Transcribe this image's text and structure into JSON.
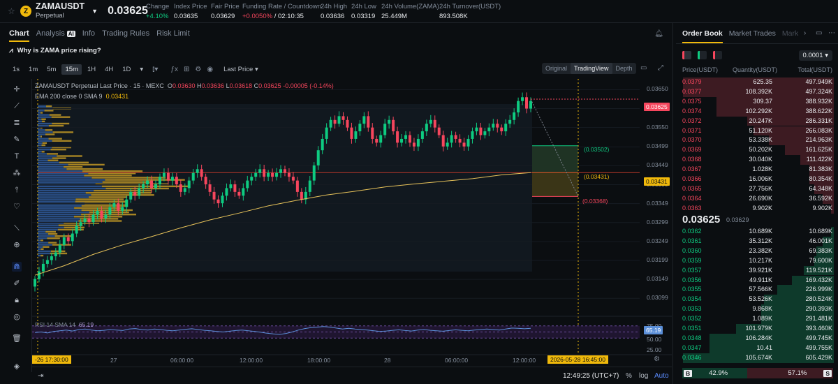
{
  "ticker": {
    "symbol": "ZAMAUSDT",
    "contract": "Perpetual",
    "coin_letter": "Z",
    "last_price": "0.03625",
    "change_label": "Change",
    "change_value": "+4.10%",
    "index_label": "Index Price",
    "index_value": "0.03635",
    "fair_label": "Fair Price",
    "fair_value": "0.03629",
    "funding_label": "Funding Rate / Countdown",
    "funding_rate": "+0.0050%",
    "funding_sep": "/",
    "countdown": "02:10:35",
    "high_label": "24h High",
    "high_value": "0.03636",
    "low_label": "24h Low",
    "low_value": "0.03319",
    "vol_label": "24h Volume(ZAMA)",
    "vol_value": "25.449M",
    "turnover_label": "24h Turnover(USDT)",
    "turnover_value": "893.508K"
  },
  "chart_tabs": [
    "Chart",
    "Analysis",
    "Info",
    "Trading Rules",
    "Risk Limit"
  ],
  "ai_badge": "AI",
  "prompt": "Why is ZAMA price rising?",
  "timeframes": [
    "1s",
    "1m",
    "5m",
    "15m",
    "1H",
    "4H",
    "1D"
  ],
  "active_timeframe": "15m",
  "price_source": "Last Price",
  "views": [
    "Original",
    "TradingView",
    "Depth"
  ],
  "active_view": "TradingView",
  "legend": {
    "title": "ZAMAUSDT Perpetual Last Price · 15 · MEXC",
    "o_lbl": "O",
    "o": "0.03630",
    "h_lbl": "H",
    "h": "0.03636",
    "l_lbl": "L",
    "l": "0.03618",
    "c_lbl": "C",
    "c": "0.03625",
    "chg": "-0.00005 (-0.14%)",
    "ema": "EMA 200 close 0 SMA 9",
    "ema_val": "0.03431",
    "rsi": "RSI 14 SMA 14",
    "rsi_val": "65.19"
  },
  "chart_data": {
    "type": "candlestick",
    "title": "ZAMAUSDT Perpetual Last Price · 15 · MEXC",
    "y_ticks": [
      "0.03650",
      "0.03600",
      "0.03550",
      "0.03499",
      "0.03449",
      "0.03399",
      "0.03349",
      "0.03299",
      "0.03249",
      "0.03199",
      "0.03149",
      "0.03099"
    ],
    "ylim": [
      0.0307,
      0.0366
    ],
    "x_ticks": [
      "27",
      "06:00:00",
      "12:00:00",
      "18:00:00",
      "28",
      "06:00:00",
      "12:00:00"
    ],
    "close_series": [
      0.0315,
      0.0317,
      0.0319,
      0.032,
      0.0321,
      0.0322,
      0.0324,
      0.0326,
      0.0325,
      0.0327,
      0.0329,
      0.033,
      0.0331,
      0.033,
      0.0332,
      0.0333,
      0.0331,
      0.0332,
      0.0334,
      0.0335,
      0.0333,
      0.0334,
      0.0336,
      0.0338,
      0.0337,
      0.0339,
      0.034,
      0.0341,
      0.0339,
      0.034,
      0.0342,
      0.0343,
      0.0341,
      0.0342,
      0.034,
      0.0338,
      0.0339,
      0.0341,
      0.0343,
      0.0344,
      0.0342,
      0.034,
      0.0338,
      0.0336,
      0.0335,
      0.0337,
      0.0339,
      0.034,
      0.0338,
      0.0337,
      0.0339,
      0.0341,
      0.0342,
      0.0343,
      0.0344,
      0.0342,
      0.0343,
      0.0342,
      0.0343,
      0.0344,
      0.0343,
      0.0342,
      0.0341,
      0.0338,
      0.0336,
      0.0338,
      0.0341,
      0.0345,
      0.0349,
      0.0352,
      0.0355,
      0.0357,
      0.0356,
      0.0358,
      0.0357,
      0.0355,
      0.0352,
      0.0354,
      0.0356,
      0.0358,
      0.0355,
      0.0352,
      0.0351,
      0.0353,
      0.0356,
      0.0357,
      0.0354,
      0.0351,
      0.0352,
      0.0353,
      0.0351,
      0.035,
      0.0352,
      0.0354,
      0.0356,
      0.0357,
      0.0355,
      0.0353,
      0.035,
      0.0351,
      0.0353,
      0.0352,
      0.0351,
      0.035,
      0.0352,
      0.0354,
      0.0355,
      0.0353,
      0.0354,
      0.0355,
      0.0356,
      0.0355,
      0.0354,
      0.0356,
      0.0357,
      0.0359,
      0.0362,
      0.0363,
      0.036,
      0.0362
    ],
    "ema_close": [
      0.0316,
      0.03185,
      0.03215,
      0.0324,
      0.03262,
      0.03285,
      0.03306,
      0.03324,
      0.03343,
      0.03358,
      0.03372,
      0.03382,
      0.03393,
      0.03401,
      0.03408,
      0.03415,
      0.03425,
      0.03431
    ],
    "price_tags": {
      "last": "0.03625",
      "ema": "0.03431"
    },
    "risk_reward": {
      "target": "(0.03502)",
      "entry": "(0.03431)",
      "stop": "(0.03368)"
    },
    "rsi_ticks": [
      "75.00",
      "50.00",
      "25.00"
    ],
    "rsi_value": "65.19",
    "rsi_series": [
      48,
      50,
      46,
      52,
      55,
      58,
      54,
      60,
      62,
      58,
      55,
      57,
      60,
      58,
      56,
      62,
      64,
      60,
      58,
      62,
      60,
      57,
      55,
      58,
      61,
      63,
      60,
      57,
      55,
      52,
      50,
      53,
      56,
      58,
      55,
      52,
      49,
      45,
      42,
      40,
      44,
      50,
      58,
      64,
      68,
      70,
      72,
      70,
      66,
      62,
      65,
      62,
      60,
      58,
      55,
      52,
      54,
      57,
      59,
      56,
      54,
      58,
      60,
      57,
      55,
      53,
      56,
      59,
      57,
      55,
      58,
      60,
      62,
      60,
      58,
      62,
      66,
      65,
      63,
      65
    ]
  },
  "time_axis": {
    "start_tag": "-26   17:30:00",
    "cursor_tag": "2026-05-28   16:45:00"
  },
  "status": {
    "clock": "12:49:25 (UTC+7)",
    "pct": "%",
    "log": "log",
    "auto": "Auto"
  },
  "orderbook": {
    "tabs": [
      "Order Book",
      "Market Trades",
      "Mark"
    ],
    "tick_size": "0.0001",
    "col_price": "Price(USDT)",
    "col_qty": "Quantity(USDT)",
    "col_total": "Total(USDT)",
    "asks": [
      {
        "p": "0.0379",
        "q": "625.35",
        "t": "497.949K",
        "d": 1.0
      },
      {
        "p": "0.0377",
        "q": "108.392K",
        "t": "497.324K",
        "d": 0.999
      },
      {
        "p": "0.0375",
        "q": "309.37",
        "t": "388.932K",
        "d": 0.78
      },
      {
        "p": "0.0374",
        "q": "102.292K",
        "t": "388.622K",
        "d": 0.78
      },
      {
        "p": "0.0372",
        "q": "20.247K",
        "t": "286.331K",
        "d": 0.575
      },
      {
        "p": "0.0371",
        "q": "51.120K",
        "t": "266.083K",
        "d": 0.534
      },
      {
        "p": "0.0370",
        "q": "53.338K",
        "t": "214.963K",
        "d": 0.432
      },
      {
        "p": "0.0369",
        "q": "50.202K",
        "t": "161.625K",
        "d": 0.325
      },
      {
        "p": "0.0368",
        "q": "30.040K",
        "t": "111.422K",
        "d": 0.224
      },
      {
        "p": "0.0367",
        "q": "1.028K",
        "t": "81.383K",
        "d": 0.163
      },
      {
        "p": "0.0366",
        "q": "16.006K",
        "t": "80.354K",
        "d": 0.161
      },
      {
        "p": "0.0365",
        "q": "27.756K",
        "t": "64.348K",
        "d": 0.129
      },
      {
        "p": "0.0364",
        "q": "26.690K",
        "t": "36.592K",
        "d": 0.073
      },
      {
        "p": "0.0363",
        "q": "9.902K",
        "t": "9.902K",
        "d": 0.02
      }
    ],
    "mid_price": "0.03625",
    "mid_ref": "0.03629",
    "bids": [
      {
        "p": "0.0362",
        "q": "10.689K",
        "t": "10.689K",
        "d": 0.018
      },
      {
        "p": "0.0361",
        "q": "35.312K",
        "t": "46.001K",
        "d": 0.076
      },
      {
        "p": "0.0360",
        "q": "23.382K",
        "t": "69.383K",
        "d": 0.115
      },
      {
        "p": "0.0359",
        "q": "10.217K",
        "t": "79.600K",
        "d": 0.131
      },
      {
        "p": "0.0357",
        "q": "39.921K",
        "t": "119.521K",
        "d": 0.197
      },
      {
        "p": "0.0356",
        "q": "49.911K",
        "t": "169.432K",
        "d": 0.28
      },
      {
        "p": "0.0355",
        "q": "57.566K",
        "t": "226.999K",
        "d": 0.375
      },
      {
        "p": "0.0354",
        "q": "53.526K",
        "t": "280.524K",
        "d": 0.463
      },
      {
        "p": "0.0353",
        "q": "9.868K",
        "t": "290.393K",
        "d": 0.48
      },
      {
        "p": "0.0352",
        "q": "1.089K",
        "t": "291.481K",
        "d": 0.481
      },
      {
        "p": "0.0351",
        "q": "101.979K",
        "t": "393.460K",
        "d": 0.65
      },
      {
        "p": "0.0348",
        "q": "106.284K",
        "t": "499.745K",
        "d": 0.825
      },
      {
        "p": "0.0347",
        "q": "10.41",
        "t": "499.755K",
        "d": 0.825
      },
      {
        "p": "0.0346",
        "q": "105.674K",
        "t": "605.429K",
        "d": 1.0
      }
    ],
    "buy_tag": "B",
    "sell_tag": "S",
    "buy_ratio": "42.9%",
    "sell_ratio": "57.1%",
    "buy_fraction": 0.429
  },
  "colors": {
    "up": "#0ecb81",
    "down": "#f6465d",
    "accent": "#f0b90b",
    "ema": "#e8c35a",
    "rsi": "#5b8fd8"
  }
}
